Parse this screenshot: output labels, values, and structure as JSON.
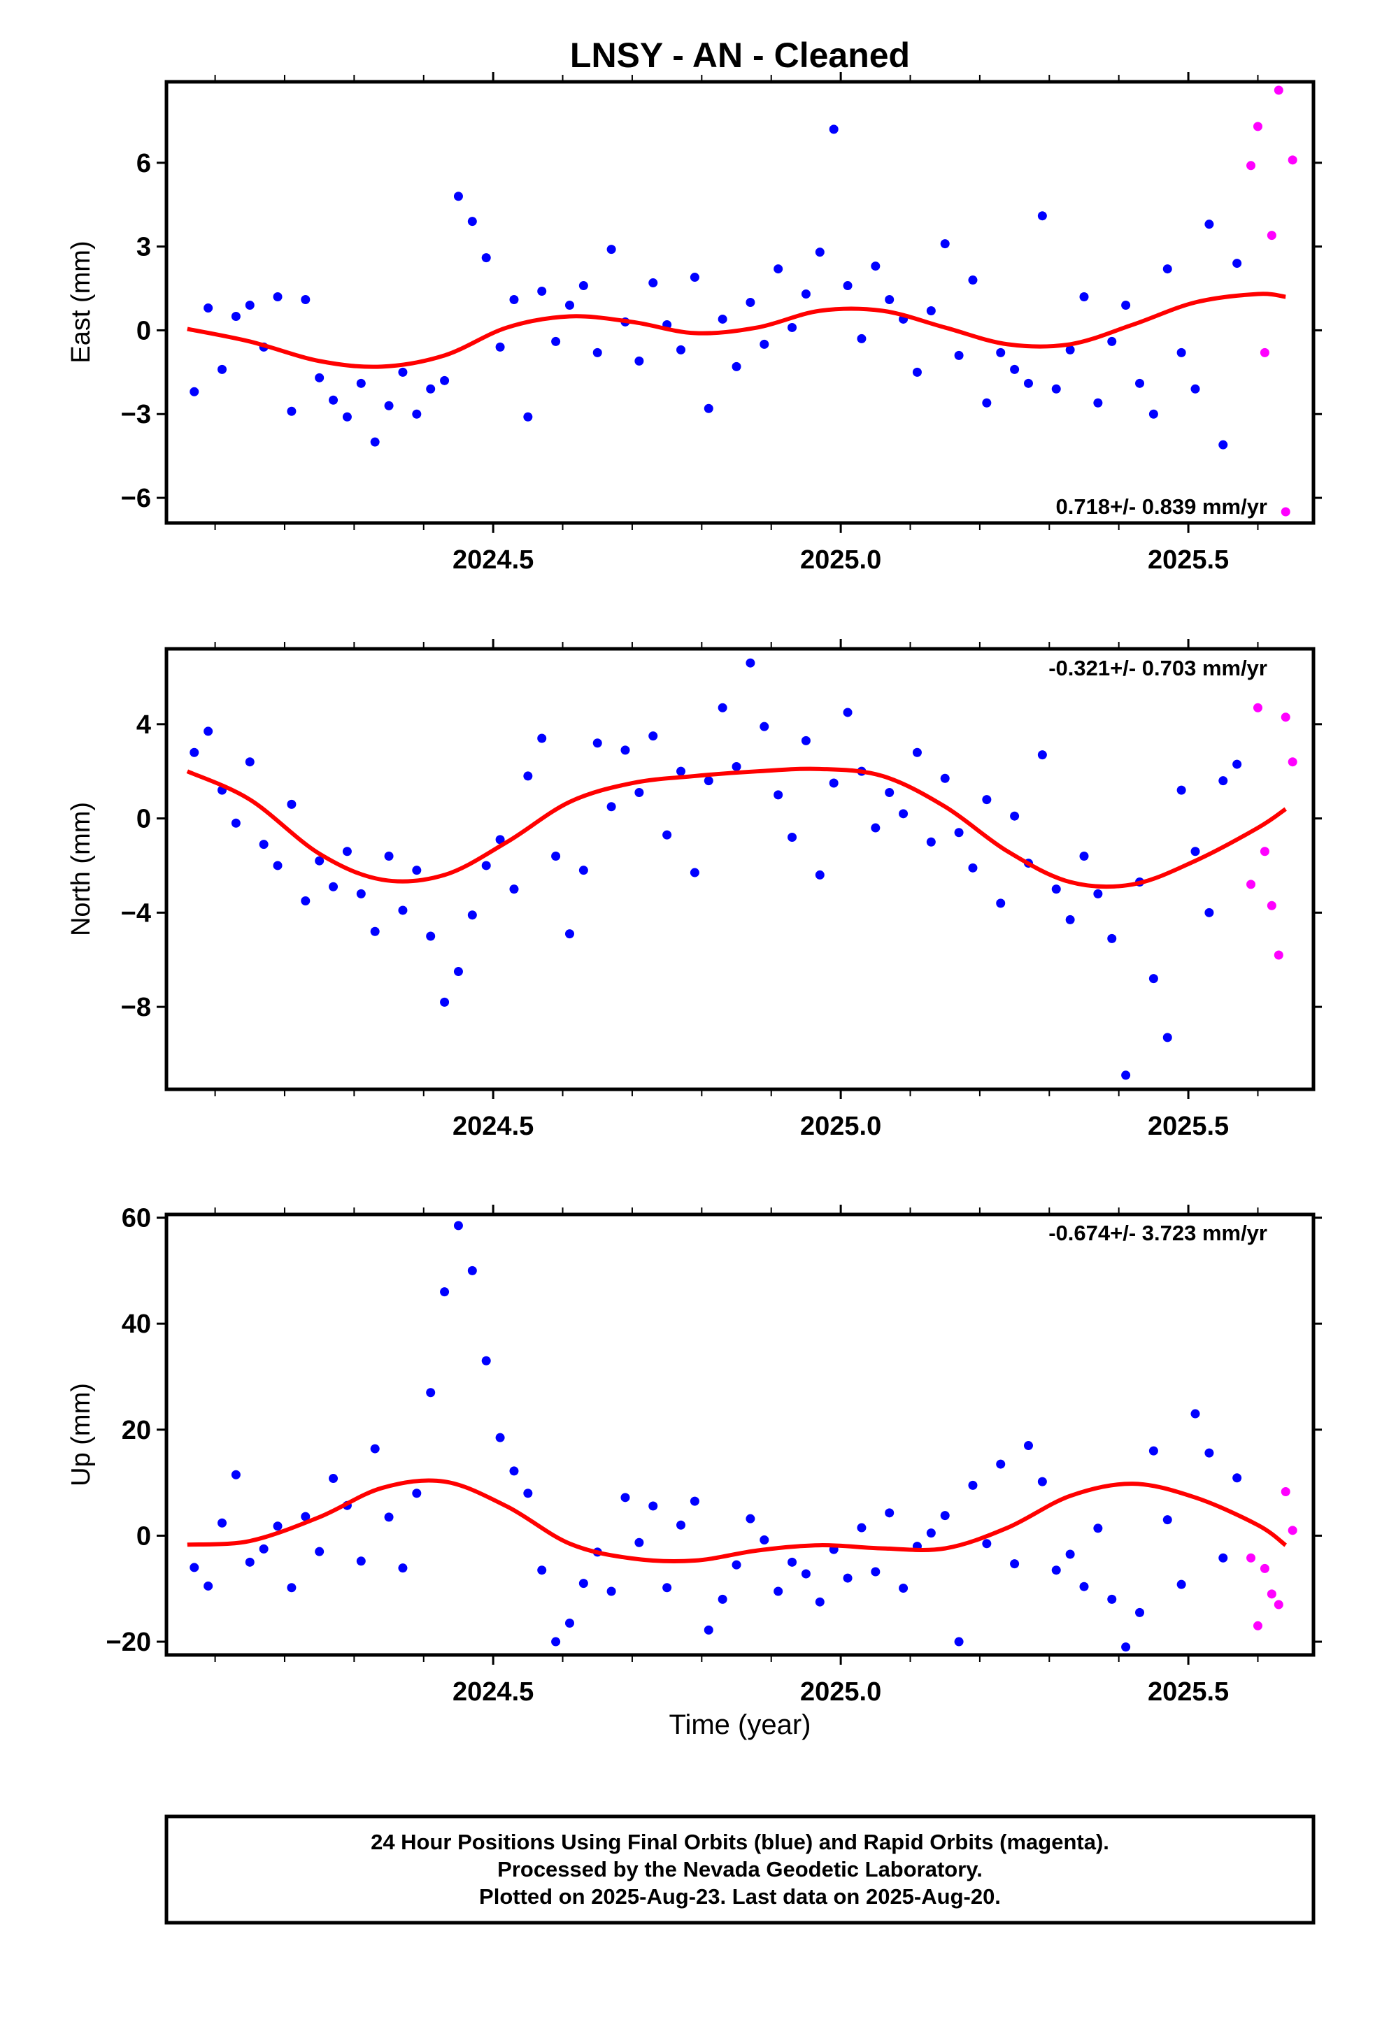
{
  "figure": {
    "title": "LNSY  - AN - Cleaned",
    "xlabel": "Time (year)",
    "footer": [
      "24 Hour Positions Using Final Orbits (blue) and Rapid Orbits (magenta).",
      "Processed by the Nevada Geodetic Laboratory.",
      "Plotted on 2025-Aug-23. Last data on 2025-Aug-20."
    ]
  },
  "colors": {
    "final": "#0000ff",
    "rapid": "#ff00ff",
    "fit": "#ff0000",
    "axis": "#000000"
  },
  "chart_data": [
    {
      "type": "scatter",
      "ylabel": "East (mm)",
      "rate": "0.718+/- 0.839 mm/yr",
      "xlim": [
        2024.03,
        2025.68
      ],
      "ylim": [
        -6.9,
        8.9
      ],
      "yticks": [
        -6,
        -3,
        0,
        3,
        6
      ],
      "ytick_labels": [
        "−6",
        "−3",
        "0",
        "3",
        "6"
      ],
      "xticks": [
        2024.5,
        2025.0,
        2025.5
      ],
      "xtick_labels": [
        "2024.5",
        "2025.0",
        "2025.5"
      ],
      "series": [
        {
          "role": "final",
          "x": [
            2024.07,
            2024.09,
            2024.11,
            2024.13,
            2024.15,
            2024.17,
            2024.19,
            2024.21,
            2024.23,
            2024.25,
            2024.27,
            2024.29,
            2024.31,
            2024.33,
            2024.35,
            2024.37,
            2024.39,
            2024.41,
            2024.43,
            2024.45,
            2024.47,
            2024.49,
            2024.51,
            2024.53,
            2024.55,
            2024.57,
            2024.59,
            2024.61,
            2024.63,
            2024.65,
            2024.67,
            2024.69,
            2024.71,
            2024.73,
            2024.75,
            2024.77,
            2024.79,
            2024.81,
            2024.83,
            2024.85,
            2024.87,
            2024.89,
            2024.91,
            2024.93,
            2024.95,
            2024.97,
            2024.99,
            2025.01,
            2025.03,
            2025.05,
            2025.07,
            2025.09,
            2025.11,
            2025.13,
            2025.15,
            2025.17,
            2025.19,
            2025.21,
            2025.23,
            2025.25,
            2025.27,
            2025.29,
            2025.31,
            2025.33,
            2025.35,
            2025.37,
            2025.39,
            2025.41,
            2025.43,
            2025.45,
            2025.47,
            2025.49,
            2025.51,
            2025.53,
            2025.55,
            2025.57
          ],
          "y": [
            -2.2,
            0.8,
            -1.4,
            0.5,
            0.9,
            -0.6,
            1.2,
            -2.9,
            1.1,
            -1.7,
            -2.5,
            -3.1,
            -1.9,
            -4.0,
            -2.7,
            -1.5,
            -3.0,
            -2.1,
            -1.8,
            4.8,
            3.9,
            2.6,
            -0.6,
            1.1,
            -3.1,
            1.4,
            -0.4,
            0.9,
            1.6,
            -0.8,
            2.9,
            0.3,
            -1.1,
            1.7,
            0.2,
            -0.7,
            1.9,
            -2.8,
            0.4,
            -1.3,
            1.0,
            -0.5,
            2.2,
            0.1,
            1.3,
            2.8,
            7.2,
            1.6,
            -0.3,
            2.3,
            1.1,
            0.4,
            -1.5,
            0.7,
            3.1,
            -0.9,
            1.8,
            -2.6,
            -0.8,
            -1.4,
            -1.9,
            4.1,
            -2.1,
            -0.7,
            1.2,
            -2.6,
            -0.4,
            0.9,
            -1.9,
            -3.0,
            2.2,
            -0.8,
            -2.1,
            3.8,
            -4.1,
            2.4
          ]
        },
        {
          "role": "rapid",
          "x": [
            2025.59,
            2025.6,
            2025.61,
            2025.62,
            2025.63,
            2025.64,
            2025.65
          ],
          "y": [
            5.9,
            7.3,
            -0.8,
            3.4,
            8.6,
            -6.5,
            6.1
          ]
        }
      ],
      "fit": {
        "x": [
          2024.06,
          2024.15,
          2024.25,
          2024.34,
          2024.43,
          2024.52,
          2024.61,
          2024.7,
          2024.79,
          2024.88,
          2024.97,
          2025.06,
          2025.15,
          2025.24,
          2025.33,
          2025.42,
          2025.51,
          2025.6,
          2025.64
        ],
        "y": [
          0.05,
          -0.4,
          -1.1,
          -1.3,
          -0.9,
          0.1,
          0.5,
          0.3,
          -0.1,
          0.1,
          0.7,
          0.7,
          0.1,
          -0.5,
          -0.5,
          0.2,
          1.0,
          1.3,
          1.2
        ]
      }
    },
    {
      "type": "scatter",
      "ylabel": "North (mm)",
      "rate": "-0.321+/- 0.703 mm/yr",
      "xlim": [
        2024.03,
        2025.68
      ],
      "ylim": [
        -11.5,
        7.2
      ],
      "yticks": [
        -8,
        -4,
        0,
        4
      ],
      "ytick_labels": [
        "−8",
        "−4",
        "0",
        "4"
      ],
      "xticks": [
        2024.5,
        2025.0,
        2025.5
      ],
      "xtick_labels": [
        "2024.5",
        "2025.0",
        "2025.5"
      ],
      "series": [
        {
          "role": "final",
          "x": [
            2024.07,
            2024.09,
            2024.11,
            2024.13,
            2024.15,
            2024.17,
            2024.19,
            2024.21,
            2024.23,
            2024.25,
            2024.27,
            2024.29,
            2024.31,
            2024.33,
            2024.35,
            2024.37,
            2024.39,
            2024.41,
            2024.43,
            2024.45,
            2024.47,
            2024.49,
            2024.51,
            2024.53,
            2024.55,
            2024.57,
            2024.59,
            2024.61,
            2024.63,
            2024.65,
            2024.67,
            2024.69,
            2024.71,
            2024.73,
            2024.75,
            2024.77,
            2024.79,
            2024.81,
            2024.83,
            2024.85,
            2024.87,
            2024.89,
            2024.91,
            2024.93,
            2024.95,
            2024.97,
            2024.99,
            2025.01,
            2025.03,
            2025.05,
            2025.07,
            2025.09,
            2025.11,
            2025.13,
            2025.15,
            2025.17,
            2025.19,
            2025.21,
            2025.23,
            2025.25,
            2025.27,
            2025.29,
            2025.31,
            2025.33,
            2025.35,
            2025.37,
            2025.39,
            2025.41,
            2025.43,
            2025.45,
            2025.47,
            2025.49,
            2025.51,
            2025.53,
            2025.55,
            2025.57
          ],
          "y": [
            2.8,
            3.7,
            1.2,
            -0.2,
            2.4,
            -1.1,
            -2.0,
            0.6,
            -3.5,
            -1.8,
            -2.9,
            -1.4,
            -3.2,
            -4.8,
            -1.6,
            -3.9,
            -2.2,
            -5.0,
            -7.8,
            -6.5,
            -4.1,
            -2.0,
            -0.9,
            -3.0,
            1.8,
            3.4,
            -1.6,
            -4.9,
            -2.2,
            3.2,
            0.5,
            2.9,
            1.1,
            3.5,
            -0.7,
            2.0,
            -2.3,
            1.6,
            4.7,
            2.2,
            6.6,
            3.9,
            1.0,
            -0.8,
            3.3,
            -2.4,
            1.5,
            4.5,
            2.0,
            -0.4,
            1.1,
            0.2,
            2.8,
            -1.0,
            1.7,
            -0.6,
            -2.1,
            0.8,
            -3.6,
            0.1,
            -1.9,
            2.7,
            -3.0,
            -4.3,
            -1.6,
            -3.2,
            -5.1,
            -10.9,
            -2.7,
            -6.8,
            -9.3,
            1.2,
            -1.4,
            -4.0,
            1.6,
            2.3
          ]
        },
        {
          "role": "rapid",
          "x": [
            2025.59,
            2025.6,
            2025.61,
            2025.62,
            2025.63,
            2025.64,
            2025.65
          ],
          "y": [
            -2.8,
            4.7,
            -1.4,
            -3.7,
            -5.8,
            4.3,
            2.4
          ]
        }
      ],
      "fit": {
        "x": [
          2024.06,
          2024.15,
          2024.25,
          2024.34,
          2024.43,
          2024.52,
          2024.61,
          2024.7,
          2024.79,
          2024.88,
          2024.97,
          2025.06,
          2025.15,
          2025.24,
          2025.33,
          2025.42,
          2025.51,
          2025.6,
          2025.64
        ],
        "y": [
          2.0,
          0.8,
          -1.5,
          -2.6,
          -2.4,
          -1.0,
          0.7,
          1.5,
          1.8,
          2.0,
          2.1,
          1.8,
          0.5,
          -1.4,
          -2.7,
          -2.8,
          -1.8,
          -0.4,
          0.4
        ]
      }
    },
    {
      "type": "scatter",
      "ylabel": "Up (mm)",
      "rate": "-0.674+/- 3.723 mm/yr",
      "xlim": [
        2024.03,
        2025.68
      ],
      "ylim": [
        -22.5,
        60.6
      ],
      "yticks": [
        -20,
        0,
        20,
        40,
        60
      ],
      "ytick_labels": [
        "−20",
        "0",
        "20",
        "40",
        "60"
      ],
      "xticks": [
        2024.5,
        2025.0,
        2025.5
      ],
      "xtick_labels": [
        "2024.5",
        "2025.0",
        "2025.5"
      ],
      "series": [
        {
          "role": "final",
          "x": [
            2024.07,
            2024.09,
            2024.11,
            2024.13,
            2024.15,
            2024.17,
            2024.19,
            2024.21,
            2024.23,
            2024.25,
            2024.27,
            2024.29,
            2024.31,
            2024.33,
            2024.35,
            2024.37,
            2024.39,
            2024.41,
            2024.43,
            2024.45,
            2024.47,
            2024.49,
            2024.51,
            2024.53,
            2024.55,
            2024.57,
            2024.59,
            2024.61,
            2024.63,
            2024.65,
            2024.67,
            2024.69,
            2024.71,
            2024.73,
            2024.75,
            2024.77,
            2024.79,
            2024.81,
            2024.83,
            2024.85,
            2024.87,
            2024.89,
            2024.91,
            2024.93,
            2024.95,
            2024.97,
            2024.99,
            2025.01,
            2025.03,
            2025.05,
            2025.07,
            2025.09,
            2025.11,
            2025.13,
            2025.15,
            2025.17,
            2025.19,
            2025.21,
            2025.23,
            2025.25,
            2025.27,
            2025.29,
            2025.31,
            2025.33,
            2025.35,
            2025.37,
            2025.39,
            2025.41,
            2025.43,
            2025.45,
            2025.47,
            2025.49,
            2025.51,
            2025.53,
            2025.55,
            2025.57
          ],
          "y": [
            -6.0,
            -9.5,
            2.4,
            11.5,
            -5.0,
            -2.5,
            1.8,
            -9.8,
            3.6,
            -3.0,
            10.8,
            5.7,
            -4.8,
            16.4,
            3.5,
            -6.1,
            8.0,
            27.0,
            46.0,
            58.5,
            50.0,
            33.0,
            18.5,
            12.2,
            8.0,
            -6.5,
            -20.0,
            -16.5,
            -9.0,
            -3.1,
            -10.5,
            7.2,
            -1.3,
            5.6,
            -9.8,
            2.0,
            6.5,
            -17.8,
            -12.0,
            -5.5,
            3.2,
            -0.8,
            -10.5,
            -5.0,
            -7.2,
            -12.5,
            -2.6,
            -8.0,
            1.5,
            -6.8,
            4.3,
            -9.9,
            -2.0,
            0.5,
            3.8,
            -20.0,
            9.5,
            -1.5,
            13.5,
            -5.3,
            17.0,
            10.2,
            -6.5,
            -3.5,
            -9.6,
            1.4,
            -12.0,
            -21.0,
            -14.5,
            16.0,
            3.0,
            -9.2,
            23.0,
            15.6,
            -4.2,
            10.9
          ]
        },
        {
          "role": "rapid",
          "x": [
            2025.59,
            2025.6,
            2025.61,
            2025.62,
            2025.63,
            2025.64,
            2025.65
          ],
          "y": [
            -4.2,
            -17.0,
            -6.2,
            -11.0,
            -13.0,
            8.3,
            1.0
          ]
        }
      ],
      "fit": {
        "x": [
          2024.06,
          2024.15,
          2024.25,
          2024.34,
          2024.43,
          2024.52,
          2024.61,
          2024.7,
          2024.79,
          2024.88,
          2024.97,
          2025.06,
          2025.15,
          2025.24,
          2025.33,
          2025.42,
          2025.51,
          2025.6,
          2025.64
        ],
        "y": [
          -1.7,
          -1.0,
          3.5,
          9.0,
          10.2,
          5.5,
          -1.5,
          -4.3,
          -4.7,
          -2.8,
          -1.8,
          -2.4,
          -2.4,
          1.5,
          7.5,
          9.8,
          7.2,
          2.0,
          -1.8
        ]
      }
    }
  ]
}
